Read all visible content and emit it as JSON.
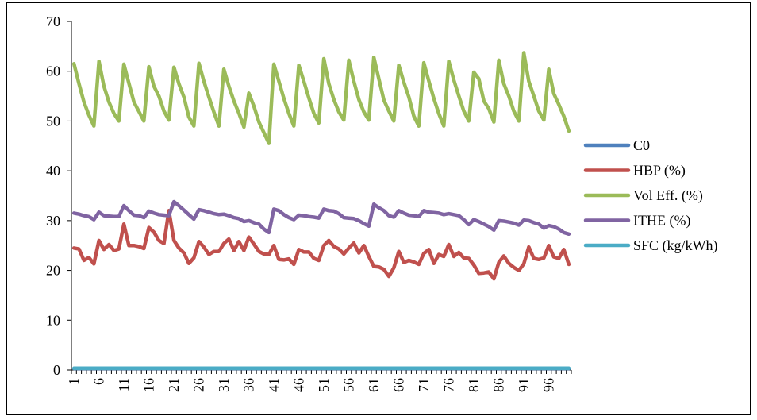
{
  "chart_data": {
    "type": "line",
    "title": "",
    "xlabel": "",
    "ylabel": "",
    "ylim": [
      0,
      70
    ],
    "y_ticks": [
      0,
      10,
      20,
      30,
      40,
      50,
      60,
      70
    ],
    "x_tick_labels": [
      "1",
      "6",
      "11",
      "16",
      "21",
      "26",
      "31",
      "36",
      "41",
      "46",
      "51",
      "56",
      "61",
      "66",
      "71",
      "76",
      "81",
      "86",
      "91",
      "96"
    ],
    "grid": false,
    "legend_position": "right",
    "x": [
      1,
      2,
      3,
      4,
      5,
      6,
      7,
      8,
      9,
      10,
      11,
      12,
      13,
      14,
      15,
      16,
      17,
      18,
      19,
      20,
      21,
      22,
      23,
      24,
      25,
      26,
      27,
      28,
      29,
      30,
      31,
      32,
      33,
      34,
      35,
      36,
      37,
      38,
      39,
      40,
      41,
      42,
      43,
      44,
      45,
      46,
      47,
      48,
      49,
      50,
      51,
      52,
      53,
      54,
      55,
      56,
      57,
      58,
      59,
      60,
      61,
      62,
      63,
      64,
      65,
      66,
      67,
      68,
      69,
      70,
      71,
      72,
      73,
      74,
      75,
      76,
      77,
      78,
      79,
      80,
      81,
      82,
      83,
      84,
      85,
      86,
      87,
      88,
      89,
      90,
      91,
      92,
      93,
      94,
      95,
      96,
      97,
      98,
      99,
      100
    ],
    "series": [
      {
        "name": "C0",
        "color": "#4f81bd",
        "values": [
          0.3,
          0.3,
          0.3,
          0.3,
          0.3,
          0.3,
          0.3,
          0.3,
          0.3,
          0.3,
          0.3,
          0.3,
          0.3,
          0.3,
          0.3,
          0.3,
          0.3,
          0.3,
          0.3,
          0.3,
          0.3,
          0.3,
          0.3,
          0.3,
          0.3,
          0.3,
          0.3,
          0.3,
          0.3,
          0.3,
          0.3,
          0.3,
          0.3,
          0.3,
          0.3,
          0.3,
          0.3,
          0.3,
          0.3,
          0.3,
          0.3,
          0.3,
          0.3,
          0.3,
          0.3,
          0.3,
          0.3,
          0.3,
          0.3,
          0.3,
          0.3,
          0.3,
          0.3,
          0.3,
          0.3,
          0.3,
          0.3,
          0.3,
          0.3,
          0.3,
          0.3,
          0.3,
          0.3,
          0.3,
          0.3,
          0.3,
          0.3,
          0.3,
          0.3,
          0.3,
          0.3,
          0.3,
          0.3,
          0.3,
          0.3,
          0.3,
          0.3,
          0.3,
          0.3,
          0.3,
          0.3,
          0.3,
          0.3,
          0.3,
          0.3,
          0.3,
          0.3,
          0.3,
          0.3,
          0.3,
          0.3,
          0.3,
          0.3,
          0.3,
          0.3,
          0.3,
          0.3,
          0.3,
          0.3,
          0.3
        ]
      },
      {
        "name": "HBP (%)",
        "color": "#c0504d",
        "values": [
          24.5,
          24.3,
          22,
          22.6,
          21.3,
          26,
          24.2,
          25.2,
          24,
          24.3,
          29.3,
          25,
          25,
          24.8,
          24.4,
          28.6,
          27.7,
          26,
          25.4,
          32,
          26,
          24.5,
          23.5,
          21.4,
          22.5,
          25.8,
          24.7,
          23.2,
          23.8,
          23.8,
          25.4,
          26.3,
          24,
          25.8,
          24,
          26.7,
          25.3,
          23.8,
          23.3,
          23.2,
          25,
          22.2,
          22.1,
          22.3,
          21.2,
          24.2,
          23.7,
          23.7,
          22.4,
          22,
          25,
          26,
          24.8,
          24.3,
          23.3,
          24.5,
          25.5,
          23.5,
          25,
          22.8,
          20.8,
          20.7,
          20.2,
          18.8,
          20.5,
          23.8,
          21.6,
          22,
          21.7,
          21.2,
          23.4,
          24.2,
          21.4,
          23.2,
          22.8,
          25.2,
          22.8,
          23.6,
          22.5,
          22.4,
          21.1,
          19.4,
          19.5,
          19.7,
          18.3,
          21.6,
          22.9,
          21.4,
          20.6,
          20,
          21.3,
          24.7,
          22.4,
          22.2,
          22.5,
          25,
          22.7,
          22.4,
          24.2,
          21.2
        ]
      },
      {
        "name": "Vol Eff. (%)",
        "color": "#9bbb59",
        "values": [
          61.5,
          57.5,
          53.8,
          51.2,
          49,
          62,
          57,
          53.8,
          51.5,
          50,
          61.4,
          57.6,
          53.8,
          51.9,
          50,
          60.9,
          57,
          55,
          52,
          50.2,
          60.8,
          57.5,
          54.8,
          50.8,
          49,
          61.6,
          58,
          54.8,
          51.8,
          49,
          60.4,
          57,
          54,
          51.6,
          48.8,
          55.6,
          53,
          49.8,
          47.7,
          45.5,
          61.4,
          58,
          54.5,
          51.5,
          49,
          61.2,
          58,
          54.6,
          51.5,
          49.6,
          62.5,
          57.5,
          54.3,
          51.8,
          50.2,
          62.2,
          58,
          54.3,
          51.8,
          50.2,
          62.8,
          58.5,
          54.2,
          52,
          50,
          61.2,
          57.8,
          54.8,
          51,
          49,
          61.7,
          58,
          54.5,
          51.5,
          49,
          62,
          58.2,
          55,
          52,
          50,
          59.8,
          58.5,
          54,
          52.5,
          49.8,
          62.2,
          57.5,
          55,
          52,
          50,
          63.7,
          58,
          55,
          52,
          50.2,
          60.4,
          55.5,
          53.3,
          51,
          48
        ]
      },
      {
        "name": "ITHE (%)",
        "color": "#8064a2",
        "values": [
          31.5,
          31.3,
          31,
          30.8,
          30.2,
          31.7,
          31,
          30.9,
          30.8,
          30.8,
          33,
          32,
          31.1,
          31,
          30.6,
          31.9,
          31.5,
          31.2,
          31.1,
          31,
          33.8,
          33,
          32.1,
          31.2,
          30.3,
          32.2,
          32,
          31.7,
          31.4,
          31.2,
          31.3,
          31,
          30.6,
          30.4,
          29.8,
          30,
          29.6,
          29.3,
          28.3,
          27.6,
          32.3,
          32,
          31.2,
          30.6,
          30.2,
          31.1,
          31,
          30.8,
          30.7,
          30.5,
          32.3,
          32,
          31.9,
          31.4,
          30.6,
          30.5,
          30.4,
          30,
          29.4,
          28.9,
          33.3,
          32.6,
          32,
          31,
          30.7,
          32,
          31.5,
          31.1,
          31,
          30.8,
          32,
          31.7,
          31.6,
          31.5,
          31.2,
          31.4,
          31.2,
          31,
          30.2,
          29.2,
          30.2,
          29.8,
          29.3,
          28.8,
          28.1,
          30,
          29.9,
          29.7,
          29.5,
          29.1,
          30.1,
          30,
          29.6,
          29.3,
          28.5,
          29,
          28.8,
          28.3,
          27.6,
          27.3
        ]
      },
      {
        "name": "SFC (kg/kWh)",
        "color": "#4bacc6",
        "values": [
          0.35,
          0.35,
          0.35,
          0.35,
          0.35,
          0.35,
          0.35,
          0.35,
          0.35,
          0.35,
          0.35,
          0.35,
          0.35,
          0.35,
          0.35,
          0.35,
          0.35,
          0.35,
          0.35,
          0.35,
          0.35,
          0.35,
          0.35,
          0.35,
          0.35,
          0.35,
          0.35,
          0.35,
          0.35,
          0.35,
          0.35,
          0.35,
          0.35,
          0.35,
          0.35,
          0.35,
          0.35,
          0.35,
          0.35,
          0.35,
          0.35,
          0.35,
          0.35,
          0.35,
          0.35,
          0.35,
          0.35,
          0.35,
          0.35,
          0.35,
          0.35,
          0.35,
          0.35,
          0.35,
          0.35,
          0.35,
          0.35,
          0.35,
          0.35,
          0.35,
          0.35,
          0.35,
          0.35,
          0.35,
          0.35,
          0.35,
          0.35,
          0.35,
          0.35,
          0.35,
          0.35,
          0.35,
          0.35,
          0.35,
          0.35,
          0.35,
          0.35,
          0.35,
          0.35,
          0.35,
          0.35,
          0.35,
          0.35,
          0.35,
          0.35,
          0.35,
          0.35,
          0.35,
          0.35,
          0.35,
          0.35,
          0.35,
          0.35,
          0.35,
          0.35,
          0.35,
          0.35,
          0.35,
          0.35,
          0.35
        ]
      }
    ]
  }
}
